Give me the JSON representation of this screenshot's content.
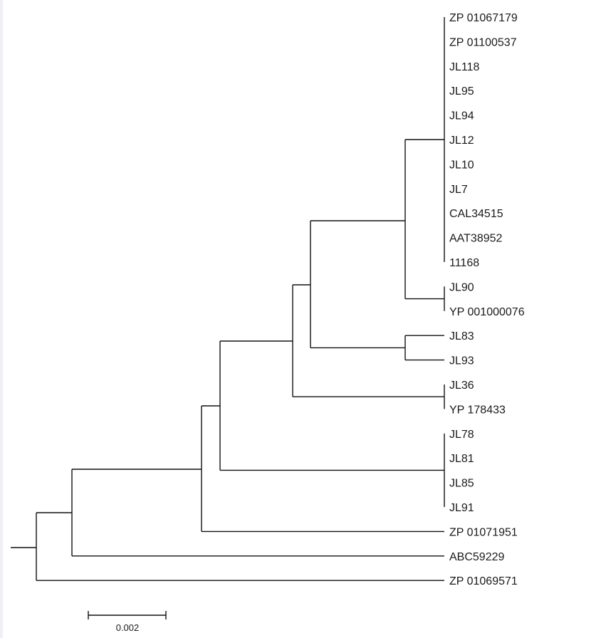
{
  "tree": {
    "leaves": [
      "ZP 01067179",
      "ZP 01100537",
      "JL118",
      "JL95",
      "JL94",
      "JL12",
      "JL10",
      "JL7",
      "CAL34515",
      "AAT38952",
      "11168",
      "JL90",
      "YP 001000076",
      "JL83",
      "JL93",
      "JL36",
      "YP 178433",
      "JL78",
      "JL81",
      "JL85",
      "JL91",
      "ZP 01071951",
      "ABC59229",
      "ZP 01069571"
    ],
    "scale_bar": {
      "label": "0.002",
      "length": 0.002
    }
  }
}
